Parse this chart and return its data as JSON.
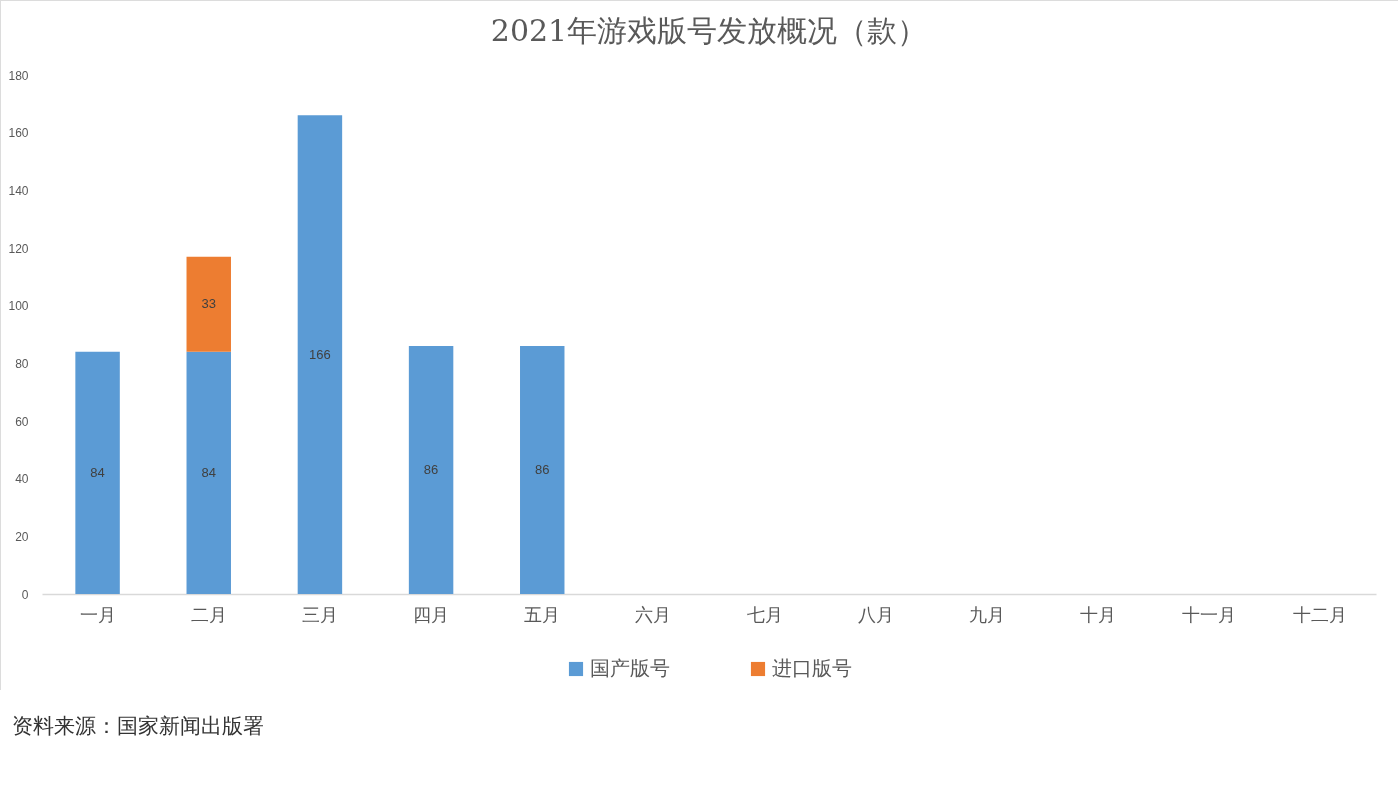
{
  "chart_data": {
    "type": "bar",
    "title": "2021年游戏版号发放概况（款）",
    "categories": [
      "一月",
      "二月",
      "三月",
      "四月",
      "五月",
      "六月",
      "七月",
      "八月",
      "九月",
      "十月",
      "十一月",
      "十二月"
    ],
    "series": [
      {
        "name": "国产版号",
        "color": "#5b9bd5",
        "values": [
          84,
          84,
          166,
          86,
          86,
          null,
          null,
          null,
          null,
          null,
          null,
          null
        ]
      },
      {
        "name": "进口版号",
        "color": "#ed7d31",
        "values": [
          null,
          33,
          null,
          null,
          null,
          null,
          null,
          null,
          null,
          null,
          null,
          null
        ]
      }
    ],
    "stacked": true,
    "ylim": [
      0,
      180
    ],
    "yticks": [
      0,
      20,
      40,
      60,
      80,
      100,
      120,
      140,
      160,
      180
    ],
    "data_labels": true,
    "legend": "bottom",
    "annotations": [
      "资料来源：国家新闻出版署"
    ]
  }
}
